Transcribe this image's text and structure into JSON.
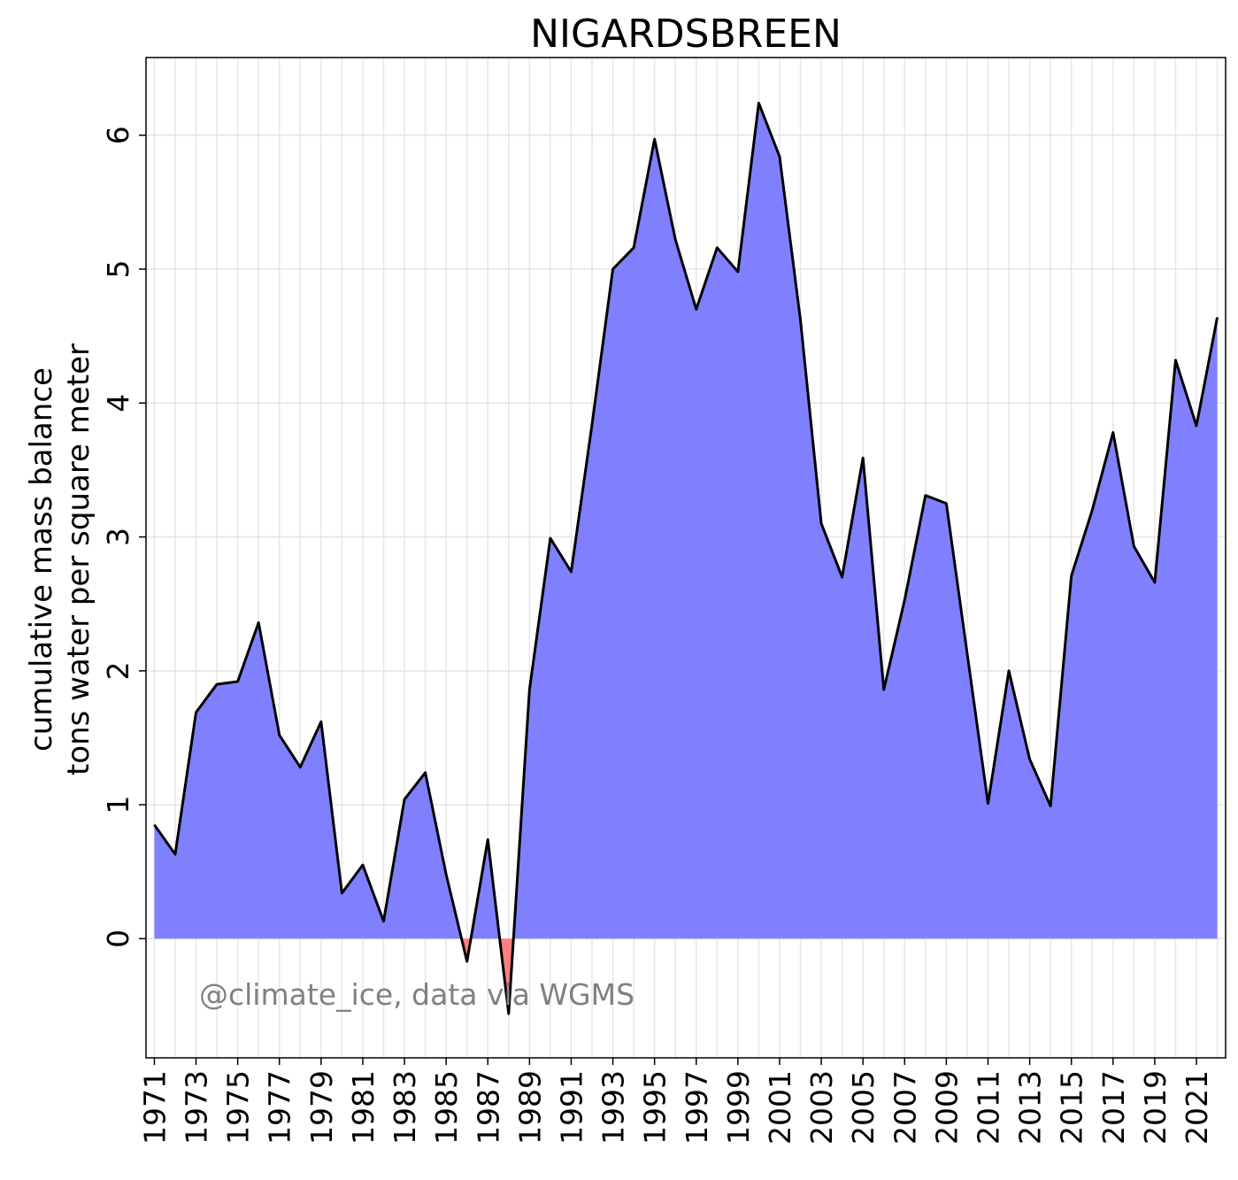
{
  "chart_data": {
    "type": "area",
    "title": "NIGARDSBREEN",
    "ylabel_lines": [
      "cumulative mass balance",
      "tons water per square meter"
    ],
    "xlabel": "",
    "x": [
      1971,
      1972,
      1973,
      1974,
      1975,
      1976,
      1977,
      1978,
      1979,
      1980,
      1981,
      1982,
      1983,
      1984,
      1985,
      1986,
      1987,
      1988,
      1989,
      1990,
      1991,
      1992,
      1993,
      1994,
      1995,
      1996,
      1997,
      1998,
      1999,
      2000,
      2001,
      2002,
      2003,
      2004,
      2005,
      2006,
      2007,
      2008,
      2009,
      2010,
      2011,
      2012,
      2013,
      2014,
      2015,
      2016,
      2017,
      2018,
      2019,
      2020,
      2021,
      2022
    ],
    "series": [
      {
        "values": [
          0.85,
          0.63,
          1.69,
          1.9,
          1.92,
          2.36,
          1.52,
          1.28,
          1.62,
          0.34,
          0.55,
          0.13,
          1.04,
          1.24,
          0.48,
          -0.17,
          0.74,
          -0.56,
          1.86,
          2.99,
          2.74,
          3.84,
          5.0,
          5.16,
          5.97,
          5.22,
          4.7,
          5.16,
          4.98,
          6.24,
          5.84,
          4.62,
          3.1,
          2.7,
          3.59,
          1.86,
          2.53,
          3.31,
          3.25,
          2.13,
          1.01,
          2.0,
          1.34,
          0.99,
          2.71,
          3.2,
          3.78,
          2.93,
          2.66,
          4.32,
          3.83,
          4.64
        ]
      }
    ],
    "xticks": [
      1971,
      1973,
      1975,
      1977,
      1979,
      1981,
      1983,
      1985,
      1987,
      1989,
      1991,
      1993,
      1995,
      1997,
      1999,
      2001,
      2003,
      2005,
      2007,
      2009,
      2011,
      2013,
      2015,
      2017,
      2019,
      2021
    ],
    "yticks": [
      0,
      1,
      2,
      3,
      4,
      5,
      6
    ],
    "xlim": [
      1970.6,
      1972.6
    ],
    "ylim": [
      -0.89,
      6.58
    ],
    "x_range": [
      1970.6,
      2022.4
    ],
    "grid": true,
    "positive_color": "#8080ff",
    "negative_color": "#ff8080",
    "line_color": "#000000",
    "watermark": "@climate_ice, data via WGMS"
  }
}
